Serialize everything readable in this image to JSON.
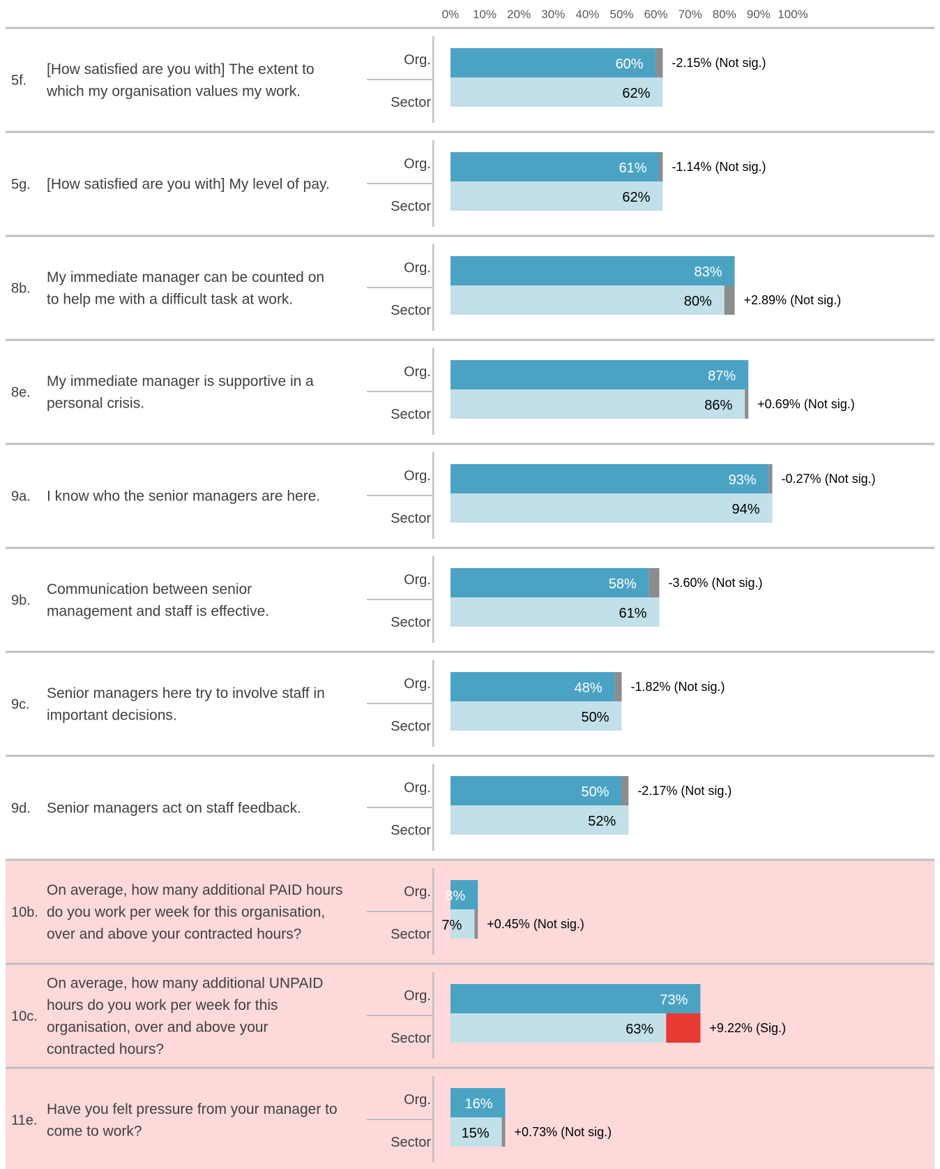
{
  "chart_data": {
    "type": "bar",
    "orientation": "horizontal",
    "x_ticks": [
      "0%",
      "10%",
      "20%",
      "30%",
      "40%",
      "50%",
      "60%",
      "70%",
      "80%",
      "90%",
      "100%"
    ],
    "xlim": [
      0,
      100
    ],
    "group_labels": {
      "org": "Org.",
      "sector": "Sector"
    },
    "colors": {
      "org": "#4ba3c3",
      "sector": "#c2e0e9",
      "diff_not_sig": "#8c8c8c",
      "diff_sig": "#e63a33",
      "highlight_row": "#fdd9da",
      "divider": "#bfbfbf"
    },
    "rows": [
      {
        "id": "5f.",
        "lines": [
          "[How satisfied are you with] The extent to",
          "which my organisation values my work."
        ],
        "org": 60,
        "org_label": "60%",
        "sector": 62,
        "sector_label": "62%",
        "diff_label": "-2.15% (Not sig.)",
        "sig": false,
        "highlight": false
      },
      {
        "id": "5g.",
        "lines": [
          "[How satisfied are you with] My level of pay."
        ],
        "org": 61,
        "org_label": "61%",
        "sector": 62,
        "sector_label": "62%",
        "diff_label": "-1.14% (Not sig.)",
        "sig": false,
        "highlight": false
      },
      {
        "id": "8b.",
        "lines": [
          "My immediate manager can be counted on",
          "to help me with a difficult task at work."
        ],
        "org": 83,
        "org_label": "83%",
        "sector": 80,
        "sector_label": "80%",
        "diff_label": "+2.89% (Not sig.)",
        "sig": false,
        "highlight": false
      },
      {
        "id": "8e.",
        "lines": [
          "My immediate manager is supportive in a",
          "personal crisis."
        ],
        "org": 87,
        "org_label": "87%",
        "sector": 86,
        "sector_label": "86%",
        "diff_label": "+0.69% (Not sig.)",
        "sig": false,
        "highlight": false
      },
      {
        "id": "9a.",
        "lines": [
          "I know who the senior managers are here."
        ],
        "org": 93,
        "org_label": "93%",
        "sector": 94,
        "sector_label": "94%",
        "diff_label": "-0.27% (Not sig.)",
        "sig": false,
        "highlight": false
      },
      {
        "id": "9b.",
        "lines": [
          "Communication between senior",
          "management and staff is effective."
        ],
        "org": 58,
        "org_label": "58%",
        "sector": 61,
        "sector_label": "61%",
        "diff_label": "-3.60% (Not sig.)",
        "sig": false,
        "highlight": false
      },
      {
        "id": "9c.",
        "lines": [
          "Senior managers here try to involve staff in",
          "important decisions."
        ],
        "org": 48,
        "org_label": "48%",
        "sector": 50,
        "sector_label": "50%",
        "diff_label": "-1.82% (Not sig.)",
        "sig": false,
        "highlight": false
      },
      {
        "id": "9d.",
        "lines": [
          "Senior managers act on staff feedback."
        ],
        "org": 50,
        "org_label": "50%",
        "sector": 52,
        "sector_label": "52%",
        "diff_label": "-2.17% (Not sig.)",
        "sig": false,
        "highlight": false
      },
      {
        "id": "10b.",
        "lines": [
          "On average, how many additional PAID hours",
          "do you work per week for this organisation,",
          "over and above your contracted hours?"
        ],
        "org": 8,
        "org_label": "8%",
        "sector": 7,
        "sector_label": "7%",
        "diff_label": "+0.45% (Not sig.)",
        "sig": false,
        "highlight": true
      },
      {
        "id": "10c.",
        "lines": [
          "On average, how many additional UNPAID",
          "hours do you work per week for this",
          "organisation, over and above your",
          "contracted hours?"
        ],
        "org": 73,
        "org_label": "73%",
        "sector": 63,
        "sector_label": "63%",
        "diff_label": "+9.22% (Sig.)",
        "sig": true,
        "highlight": true
      },
      {
        "id": "11e.",
        "lines": [
          "Have you felt pressure from your manager to",
          "come to work?"
        ],
        "org": 16,
        "org_label": "16%",
        "sector": 15,
        "sector_label": "15%",
        "diff_label": "+0.73% (Not sig.)",
        "sig": false,
        "highlight": true
      }
    ]
  }
}
